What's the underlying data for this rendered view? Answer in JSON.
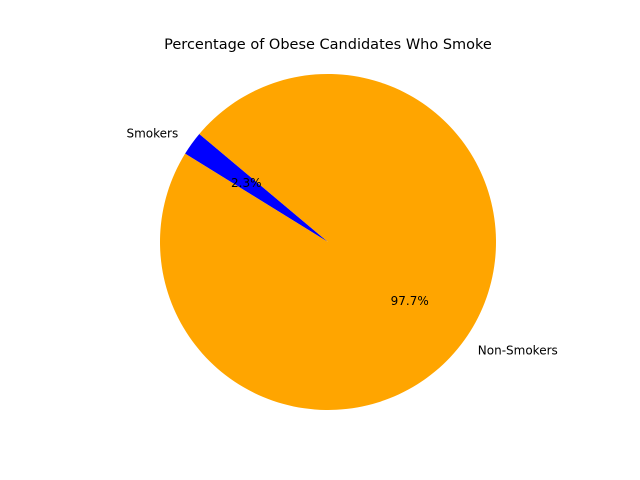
{
  "chart_data": {
    "type": "pie",
    "title": "Percentage of Obese Candidates Who Smoke",
    "slices": [
      {
        "label": "Smokers",
        "value": 2.3,
        "pct_label": "2.3%",
        "color": "#0000ff"
      },
      {
        "label": "Non-Smokers",
        "value": 97.7,
        "pct_label": "97.7%",
        "color": "#ffa500"
      }
    ],
    "start_angle_deg": 140,
    "direction": "counterclockwise"
  }
}
